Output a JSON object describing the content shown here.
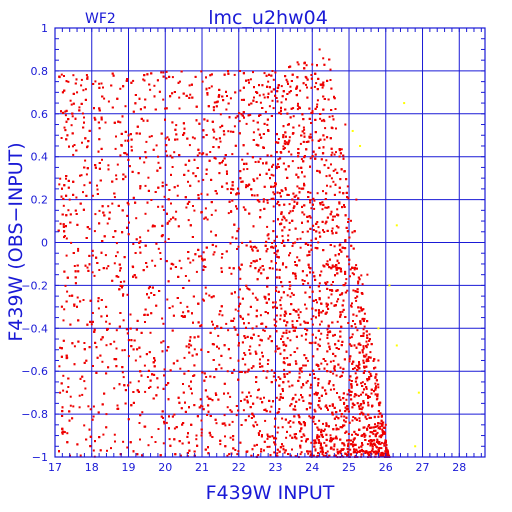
{
  "chart_data": {
    "type": "scatter",
    "panel_label": "WF2",
    "title": "lmc_u2hw04",
    "xlabel": "F439W INPUT",
    "ylabel": "F439W (OBS−INPUT)",
    "xlim": [
      17,
      28.7
    ],
    "ylim": [
      -1,
      1
    ],
    "x_ticks": [
      17,
      18,
      19,
      20,
      21,
      22,
      23,
      24,
      25,
      26,
      27,
      28
    ],
    "y_ticks": [
      -1,
      -0.8,
      -0.6,
      -0.4,
      -0.2,
      0,
      0.2,
      0.4,
      0.6,
      0.8,
      1
    ],
    "x_tick_labels": [
      "17",
      "18",
      "19",
      "20",
      "21",
      "22",
      "23",
      "24",
      "25",
      "26",
      "27",
      "28"
    ],
    "y_tick_labels": [
      "−1",
      "−0.8",
      "−0.6",
      "−0.4",
      "−0.2",
      "0",
      "0.2",
      "0.4",
      "0.6",
      "0.8",
      "1"
    ],
    "grid": true,
    "series": [
      {
        "color": "#ee0000",
        "description_of_distribution": "dense cloud, x from ~17.1 to ~26.1; upper edge near y=0.8 for x<24.5, then falling to about -1 at x~26; concentration increases toward x=23-25 and y<-0.4",
        "sample_points": [
          [
            17.5,
            0.78
          ],
          [
            17.6,
            0.7
          ],
          [
            18.2,
            0.74
          ],
          [
            19.4,
            0.76
          ],
          [
            20.4,
            0.75
          ],
          [
            21.2,
            0.72
          ],
          [
            22.8,
            0.75
          ],
          [
            23.6,
            0.84
          ],
          [
            24.2,
            0.9
          ],
          [
            24.9,
            0.55
          ],
          [
            25.2,
            0.2
          ],
          [
            25.5,
            -0.15
          ],
          [
            25.8,
            -0.55
          ],
          [
            26.0,
            -0.85
          ],
          [
            26.1,
            -1.0
          ],
          [
            17.4,
            0.2
          ],
          [
            18.4,
            -0.8
          ],
          [
            19.2,
            -0.55
          ],
          [
            20.6,
            -0.3
          ],
          [
            21.7,
            -0.6
          ],
          [
            22.5,
            -0.85
          ],
          [
            23.4,
            -0.9
          ],
          [
            24.1,
            -0.7
          ],
          [
            24.6,
            -0.95
          ],
          [
            25.3,
            -0.8
          ]
        ]
      },
      {
        "color": "#ffff00",
        "description_of_distribution": "a few sparse points to the right of the main cloud",
        "points": [
          [
            25.1,
            0.52
          ],
          [
            25.3,
            0.45
          ],
          [
            26.3,
            0.08
          ],
          [
            26.1,
            -0.2
          ],
          [
            26.5,
            0.65
          ],
          [
            26.9,
            -0.7
          ],
          [
            26.8,
            -0.95
          ],
          [
            25.8,
            -0.4
          ],
          [
            26.3,
            -0.48
          ]
        ]
      }
    ]
  }
}
